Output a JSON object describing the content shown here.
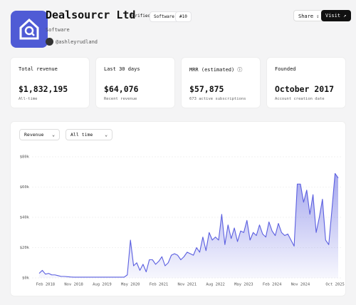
{
  "header": {
    "title": "Dealsourcr Ltd",
    "badges": [
      "Verified",
      "Software",
      "#10"
    ],
    "category": "Software",
    "author": "@ashleyrudland",
    "actions": [
      "Share",
      "Visit"
    ]
  },
  "stats": [
    {
      "label": "Total revenue",
      "value": "$1,832,195",
      "note": "All-time"
    },
    {
      "label": "Last 30 days",
      "value": "$64,076",
      "note": "Recent revenue"
    },
    {
      "label": "MRR (estimated)",
      "value": "$57,875",
      "note": "673 active subscriptions"
    },
    {
      "label": "Founded",
      "value": "October 2017",
      "note": "Account creation date"
    }
  ],
  "controls": [
    "Revenue",
    "All time"
  ],
  "chart_data": {
    "type": "area",
    "color": "#5b5fe0",
    "x": [
      "2017-12",
      "2018-01",
      "2018-02",
      "2018-03",
      "2018-04",
      "2018-05",
      "2018-06",
      "2018-07",
      "2018-08",
      "2018-09",
      "2018-10",
      "2018-11",
      "2018-12",
      "2019-01",
      "2019-02",
      "2019-03",
      "2019-04",
      "2019-05",
      "2019-06",
      "2019-07",
      "2019-08",
      "2019-09",
      "2019-10",
      "2019-11",
      "2019-12",
      "2020-01",
      "2020-02",
      "2020-03",
      "2020-04",
      "2020-05",
      "2020-06",
      "2020-07",
      "2020-08",
      "2020-09",
      "2020-10",
      "2020-11",
      "2020-12",
      "2021-01",
      "2021-02",
      "2021-03",
      "2021-04",
      "2021-05",
      "2021-06",
      "2021-07",
      "2021-08",
      "2021-09",
      "2021-10",
      "2021-11",
      "2021-12",
      "2022-01",
      "2022-02",
      "2022-03",
      "2022-04",
      "2022-05",
      "2022-06",
      "2022-07",
      "2022-08",
      "2022-09",
      "2022-10",
      "2022-11",
      "2022-12",
      "2023-01",
      "2023-02",
      "2023-03",
      "2023-04",
      "2023-05",
      "2023-06",
      "2023-07",
      "2023-08",
      "2023-09",
      "2023-10",
      "2023-11",
      "2023-12",
      "2024-01",
      "2024-02",
      "2024-03",
      "2024-04",
      "2024-05",
      "2024-06",
      "2024-07",
      "2024-08",
      "2024-09",
      "2024-10",
      "2024-11",
      "2024-12",
      "2025-01",
      "2025-02",
      "2025-03",
      "2025-04",
      "2025-05",
      "2025-06",
      "2025-07",
      "2025-08",
      "2025-09",
      "2025-10",
      "2025-11"
    ],
    "values": [
      3000,
      5000,
      2500,
      3000,
      2000,
      2000,
      1500,
      1000,
      1000,
      800,
      600,
      500,
      500,
      500,
      500,
      500,
      500,
      500,
      500,
      500,
      500,
      500,
      500,
      500,
      500,
      500,
      500,
      500,
      2000,
      25000,
      8000,
      10000,
      5000,
      9000,
      4000,
      12000,
      12000,
      9000,
      11000,
      14000,
      8000,
      10000,
      15000,
      16000,
      15000,
      12000,
      14000,
      17000,
      16000,
      15000,
      20000,
      17000,
      27000,
      18000,
      30000,
      25000,
      27000,
      25000,
      42000,
      22000,
      35000,
      26000,
      33000,
      24000,
      31000,
      30000,
      38000,
      25000,
      30000,
      28000,
      35000,
      29000,
      27000,
      37000,
      31000,
      28000,
      36000,
      30000,
      28000,
      29000,
      25000,
      21000,
      62000,
      62000,
      50000,
      58000,
      42000,
      55000,
      30000,
      40000,
      52000,
      25000,
      22000,
      45000,
      69000,
      66000
    ],
    "ylim": [
      0,
      80000
    ],
    "yticks": [
      {
        "value": 0,
        "label": "$0k"
      },
      {
        "value": 20000,
        "label": "$20k"
      },
      {
        "value": 40000,
        "label": "$40k"
      },
      {
        "value": 60000,
        "label": "$60k"
      },
      {
        "value": 80000,
        "label": "$80k"
      }
    ],
    "xticks": [
      {
        "value": "2018-02",
        "label": "Feb 2018"
      },
      {
        "value": "2018-11",
        "label": "Nov 2018"
      },
      {
        "value": "2019-08",
        "label": "Aug 2019"
      },
      {
        "value": "2020-05",
        "label": "May 2020"
      },
      {
        "value": "2021-02",
        "label": "Feb 2021"
      },
      {
        "value": "2021-11",
        "label": "Nov 2021"
      },
      {
        "value": "2022-08",
        "label": "Aug 2022"
      },
      {
        "value": "2023-05",
        "label": "May 2023"
      },
      {
        "value": "2024-02",
        "label": "Feb 2024"
      },
      {
        "value": "2024-11",
        "label": "Nov 2024"
      },
      {
        "value": "2025-10",
        "label": "Oct 2025"
      }
    ],
    "grid": true
  }
}
